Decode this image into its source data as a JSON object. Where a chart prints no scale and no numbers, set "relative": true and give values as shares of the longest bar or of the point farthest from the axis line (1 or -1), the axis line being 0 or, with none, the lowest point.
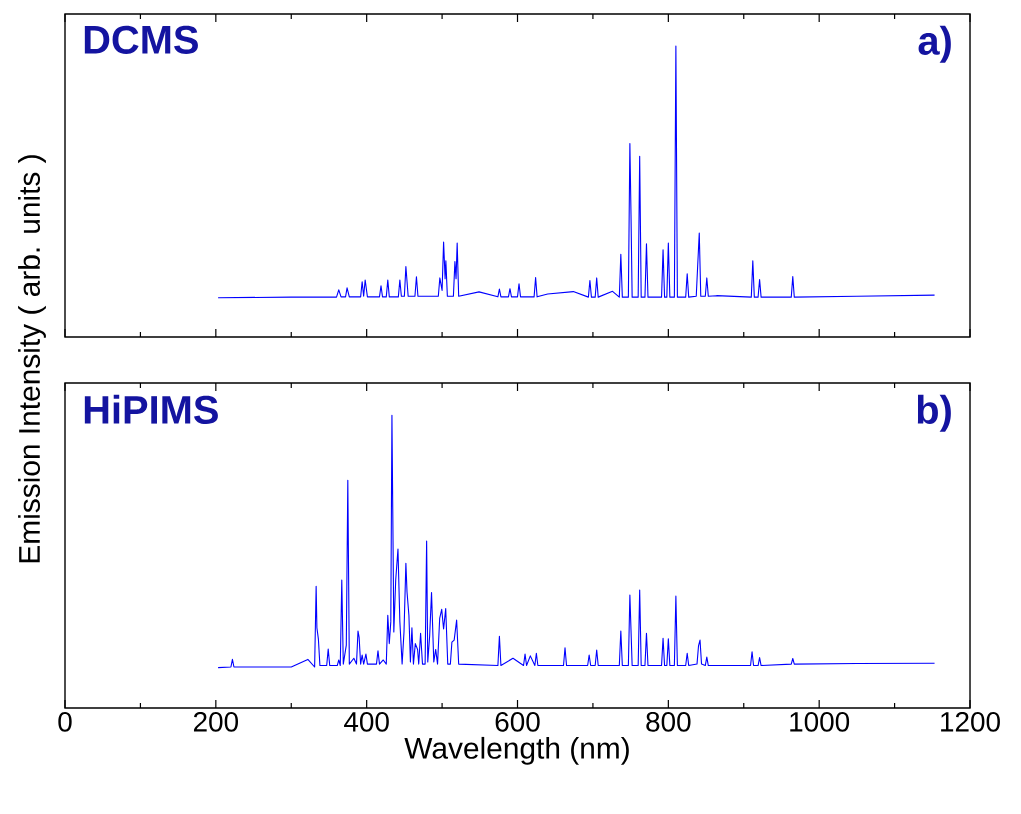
{
  "chart_data": [
    {
      "type": "line",
      "relative": true,
      "ylabel": "Emission Intensity ( arb. units )",
      "annotations": [
        "DCMS",
        "a)"
      ],
      "xlim": [
        0,
        1200
      ],
      "xticks": [
        0,
        200,
        400,
        600,
        800,
        1000,
        1200
      ],
      "tick_labels": false,
      "grid": false,
      "marker": "none",
      "line_style": "solid",
      "series": [
        {
          "color": "#0000ff",
          "x": [
            203,
            300,
            360,
            363,
            366,
            372,
            374,
            377,
            392,
            394,
            396,
            398,
            401,
            417,
            419,
            421,
            426,
            428,
            430,
            442,
            444,
            446,
            450,
            452,
            455,
            464,
            466,
            468,
            495,
            497,
            500,
            502,
            504,
            505,
            507,
            515,
            517,
            518.5,
            520,
            522,
            549,
            574,
            576,
            578,
            588,
            590,
            592,
            600,
            602,
            604,
            622,
            624,
            626,
            640,
            674,
            694,
            696,
            698,
            703,
            705,
            707,
            726,
            735,
            737,
            739,
            747,
            749,
            750.5,
            752,
            760,
            762,
            764,
            769,
            771,
            773,
            791,
            793,
            795,
            798,
            800,
            802,
            808,
            810,
            812,
            823,
            825,
            827,
            837,
            839,
            841,
            843,
            849,
            851,
            853,
            864,
            910,
            912,
            914,
            919,
            921,
            923,
            963,
            965,
            967,
            1050,
            1153
          ],
          "values": [
            0.135,
            0.137,
            0.137,
            0.162,
            0.138,
            0.138,
            0.169,
            0.138,
            0.138,
            0.19,
            0.14,
            0.196,
            0.138,
            0.138,
            0.176,
            0.138,
            0.138,
            0.196,
            0.138,
            0.138,
            0.196,
            0.14,
            0.14,
            0.242,
            0.14,
            0.14,
            0.207,
            0.14,
            0.14,
            0.203,
            0.16,
            0.326,
            0.2,
            0.262,
            0.14,
            0.14,
            0.259,
            0.2,
            0.323,
            0.14,
            0.155,
            0.138,
            0.165,
            0.138,
            0.138,
            0.166,
            0.138,
            0.138,
            0.183,
            0.138,
            0.138,
            0.204,
            0.138,
            0.148,
            0.156,
            0.137,
            0.194,
            0.137,
            0.137,
            0.203,
            0.137,
            0.157,
            0.137,
            0.284,
            0.137,
            0.137,
            0.665,
            0.42,
            0.137,
            0.137,
            0.621,
            0.137,
            0.137,
            0.32,
            0.137,
            0.137,
            0.3,
            0.137,
            0.137,
            0.323,
            0.137,
            0.137,
            1.0,
            0.137,
            0.137,
            0.217,
            0.137,
            0.14,
            0.25,
            0.357,
            0.14,
            0.14,
            0.203,
            0.14,
            0.142,
            0.137,
            0.262,
            0.137,
            0.137,
            0.197,
            0.137,
            0.137,
            0.208,
            0.137,
            0.14,
            0.144
          ]
        }
      ]
    },
    {
      "type": "line",
      "relative": true,
      "xlabel": "Wavelength (nm)",
      "annotations": [
        "HiPIMS",
        "b)"
      ],
      "xlim": [
        0,
        1200
      ],
      "xticks": [
        0,
        200,
        400,
        600,
        800,
        1000,
        1200
      ],
      "tick_labels": "x",
      "grid": false,
      "marker": "none",
      "line_style": "solid",
      "series": [
        {
          "color": "#0000ff",
          "x": [
            203,
            220,
            222,
            224,
            300,
            322,
            331,
            333,
            334,
            336,
            338,
            347,
            349,
            351,
            361,
            363,
            365,
            367,
            369,
            373,
            375,
            377,
            383,
            386.5,
            388.5,
            390,
            392,
            394,
            396,
            399,
            401,
            413,
            415,
            417,
            422,
            426,
            428,
            430,
            432,
            433.5,
            436,
            438.5,
            441.5,
            444,
            447,
            449.5,
            452,
            453.5,
            456,
            458,
            460,
            462,
            464.5,
            467.5,
            469,
            471.5,
            474,
            477.5,
            479.5,
            481,
            483.5,
            486,
            489,
            491.5,
            494,
            496.8,
            499.5,
            502,
            504.8,
            507.5,
            511,
            513,
            516,
            519.3,
            522,
            574,
            576,
            578,
            594,
            608,
            610,
            612,
            617,
            623,
            625,
            627,
            661,
            663,
            665,
            693,
            695,
            697,
            703,
            705,
            707,
            735,
            737,
            739,
            747,
            749,
            750.5,
            752,
            760,
            762,
            764,
            769,
            771,
            773,
            791,
            793,
            795,
            798,
            800,
            802,
            808,
            810,
            812,
            823,
            825,
            827,
            838,
            840,
            842,
            844,
            849,
            851,
            853,
            909,
            911,
            913,
            919,
            921,
            923,
            963,
            965,
            967,
            1050,
            1153
          ],
          "values": [
            0.138,
            0.14,
            0.166,
            0.14,
            0.14,
            0.166,
            0.14,
            0.416,
            0.274,
            0.235,
            0.145,
            0.145,
            0.201,
            0.145,
            0.145,
            0.164,
            0.145,
            0.437,
            0.15,
            0.215,
            0.778,
            0.15,
            0.17,
            0.15,
            0.263,
            0.241,
            0.15,
            0.181,
            0.15,
            0.184,
            0.15,
            0.15,
            0.195,
            0.15,
            0.164,
            0.15,
            0.317,
            0.22,
            0.295,
            1.0,
            0.26,
            0.437,
            0.543,
            0.295,
            0.15,
            0.26,
            0.494,
            0.396,
            0.317,
            0.157,
            0.274,
            0.15,
            0.22,
            0.2,
            0.15,
            0.255,
            0.15,
            0.15,
            0.57,
            0.157,
            0.245,
            0.394,
            0.157,
            0.2,
            0.15,
            0.306,
            0.337,
            0.27,
            0.34,
            0.15,
            0.15,
            0.225,
            0.232,
            0.3,
            0.15,
            0.145,
            0.245,
            0.145,
            0.17,
            0.145,
            0.184,
            0.145,
            0.178,
            0.145,
            0.187,
            0.145,
            0.145,
            0.206,
            0.145,
            0.145,
            0.181,
            0.145,
            0.145,
            0.198,
            0.145,
            0.145,
            0.263,
            0.145,
            0.145,
            0.386,
            0.266,
            0.145,
            0.145,
            0.403,
            0.145,
            0.145,
            0.255,
            0.145,
            0.145,
            0.238,
            0.145,
            0.145,
            0.236,
            0.145,
            0.145,
            0.382,
            0.145,
            0.145,
            0.187,
            0.145,
            0.15,
            0.212,
            0.232,
            0.15,
            0.145,
            0.174,
            0.145,
            0.145,
            0.192,
            0.145,
            0.145,
            0.172,
            0.145,
            0.15,
            0.169,
            0.15,
            0.152,
            0.153
          ]
        }
      ]
    }
  ]
}
